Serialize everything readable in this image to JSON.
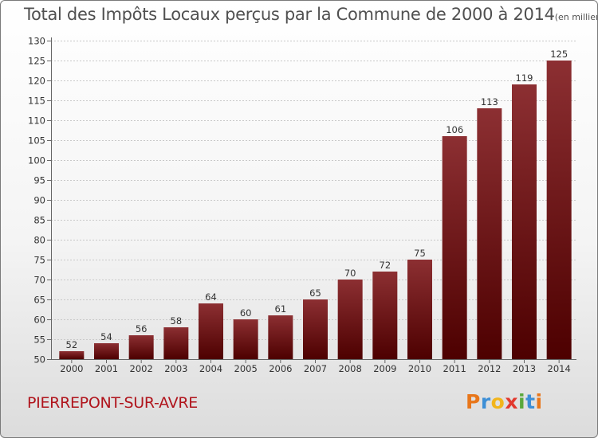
{
  "header": {
    "title": "Total des Impôts Locaux perçus par la Commune de 2000 à 2014",
    "unit": "(en milliers d'€)"
  },
  "footer": {
    "commune": "PIERREPONT-SUR-AVRE",
    "logo_letters": [
      "P",
      "r",
      "o",
      "x",
      "i",
      "t",
      "i"
    ],
    "logo_colors": [
      "#e8761a",
      "#3d8fd6",
      "#f2b51c",
      "#e23a2f",
      "#5aa83c",
      "#3d8fd6",
      "#e8761a"
    ]
  },
  "colors": {
    "bar_top": "#8c2f32",
    "bar_bottom": "#4d0000",
    "axis": "#666666",
    "grid": "#c8c8c8",
    "commune": "#b0141c"
  },
  "chart_data": {
    "type": "bar",
    "title": "Total des Impôts Locaux perçus par la Commune de 2000 à 2014",
    "xlabel": "",
    "ylabel": "",
    "categories": [
      "2000",
      "2001",
      "2002",
      "2003",
      "2004",
      "2005",
      "2006",
      "2007",
      "2008",
      "2009",
      "2010",
      "2011",
      "2012",
      "2013",
      "2014"
    ],
    "values": [
      52,
      54,
      56,
      58,
      64,
      60,
      61,
      65,
      70,
      72,
      75,
      106,
      113,
      119,
      125
    ],
    "value_labels": [
      "52",
      "54",
      "56",
      "58",
      "64",
      "60",
      "61",
      "65",
      "70",
      "72",
      "75",
      "106",
      "113",
      "119",
      "125"
    ],
    "ylim": [
      50,
      130
    ],
    "yticks": [
      50,
      55,
      60,
      65,
      70,
      75,
      80,
      85,
      90,
      95,
      100,
      105,
      110,
      115,
      120,
      125,
      130
    ],
    "ytick_labels": [
      "50",
      "55",
      "60",
      "65",
      "70",
      "75",
      "80",
      "85",
      "90",
      "95",
      "100",
      "105",
      "110",
      "115",
      "120",
      "125",
      "130"
    ],
    "grid": true
  }
}
